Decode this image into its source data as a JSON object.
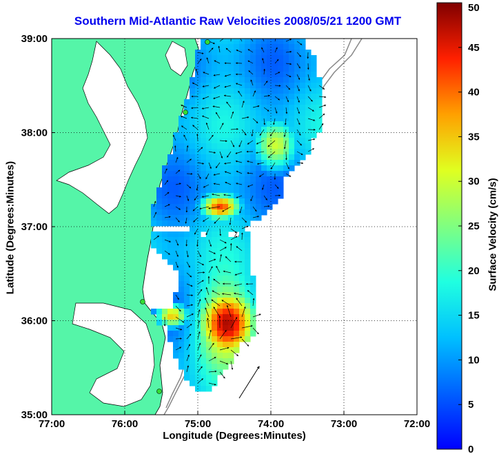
{
  "chart_data": {
    "type": "heatmap",
    "title": "Southern Mid-Atlantic Raw Velocities 2008/05/21 1200 GMT",
    "xlabel": "Longitude (Degrees:Minutes)",
    "ylabel": "Latitude (Degrees:Minutes)",
    "colorbar_label": "Surface Velocity (cm/s)",
    "x_ticks": [
      "77:00",
      "76:00",
      "75:00",
      "74:00",
      "73:00",
      "72:00"
    ],
    "y_ticks": [
      "39:00",
      "38:00",
      "37:00",
      "36:00",
      "35:00"
    ],
    "colorbar_ticks": [
      "50",
      "45",
      "40",
      "35",
      "30",
      "25",
      "20",
      "15",
      "10",
      "5",
      "0"
    ],
    "xlim": [
      -77,
      -72
    ],
    "ylim": [
      35,
      39
    ],
    "clim": [
      0,
      50
    ],
    "grid": true,
    "colormap": "jet",
    "land_color": "#55f5a8",
    "vector_color": "#000000"
  }
}
